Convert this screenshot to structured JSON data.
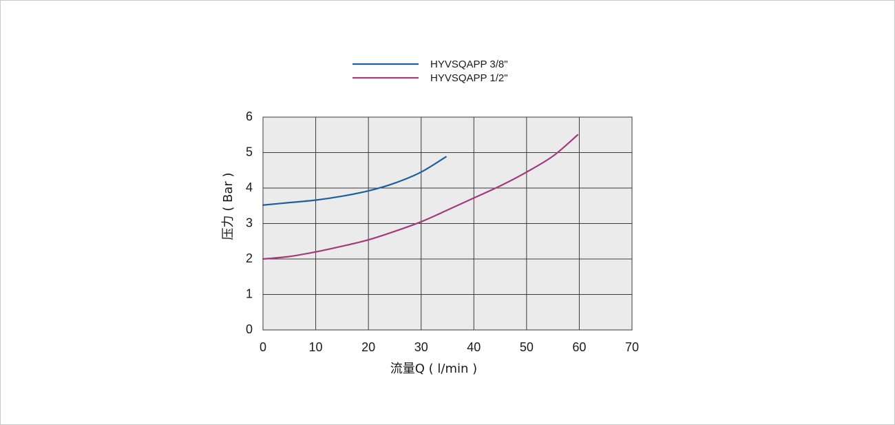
{
  "chart_data": {
    "type": "line",
    "title": "",
    "xlabel": "流量Q ( l/min )",
    "ylabel": "压力 ( Bar )",
    "xlim": [
      0,
      70
    ],
    "ylim": [
      0,
      6
    ],
    "xticks": [
      "0",
      "10",
      "20",
      "30",
      "40",
      "50",
      "60",
      "70"
    ],
    "yticks": [
      "0",
      "1",
      "2",
      "3",
      "4",
      "5",
      "6"
    ],
    "grid": true,
    "legend_position": "top",
    "plot_background": "#ebebeb",
    "series": [
      {
        "name": "HYVSQAPP 3/8\"",
        "color": "#1b5fa0",
        "x": [
          0,
          5,
          10,
          15,
          20,
          25,
          30,
          34.7
        ],
        "y": [
          3.52,
          3.59,
          3.66,
          3.77,
          3.92,
          4.14,
          4.45,
          4.88
        ]
      },
      {
        "name": "HYVSQAPP 1/2\"",
        "color": "#a23a7c",
        "x": [
          0,
          5,
          10,
          15,
          20,
          25,
          30,
          35,
          40,
          45,
          50,
          55,
          59.7
        ],
        "y": [
          2.0,
          2.07,
          2.2,
          2.36,
          2.54,
          2.78,
          3.05,
          3.38,
          3.72,
          4.06,
          4.45,
          4.9,
          5.5
        ]
      }
    ]
  }
}
